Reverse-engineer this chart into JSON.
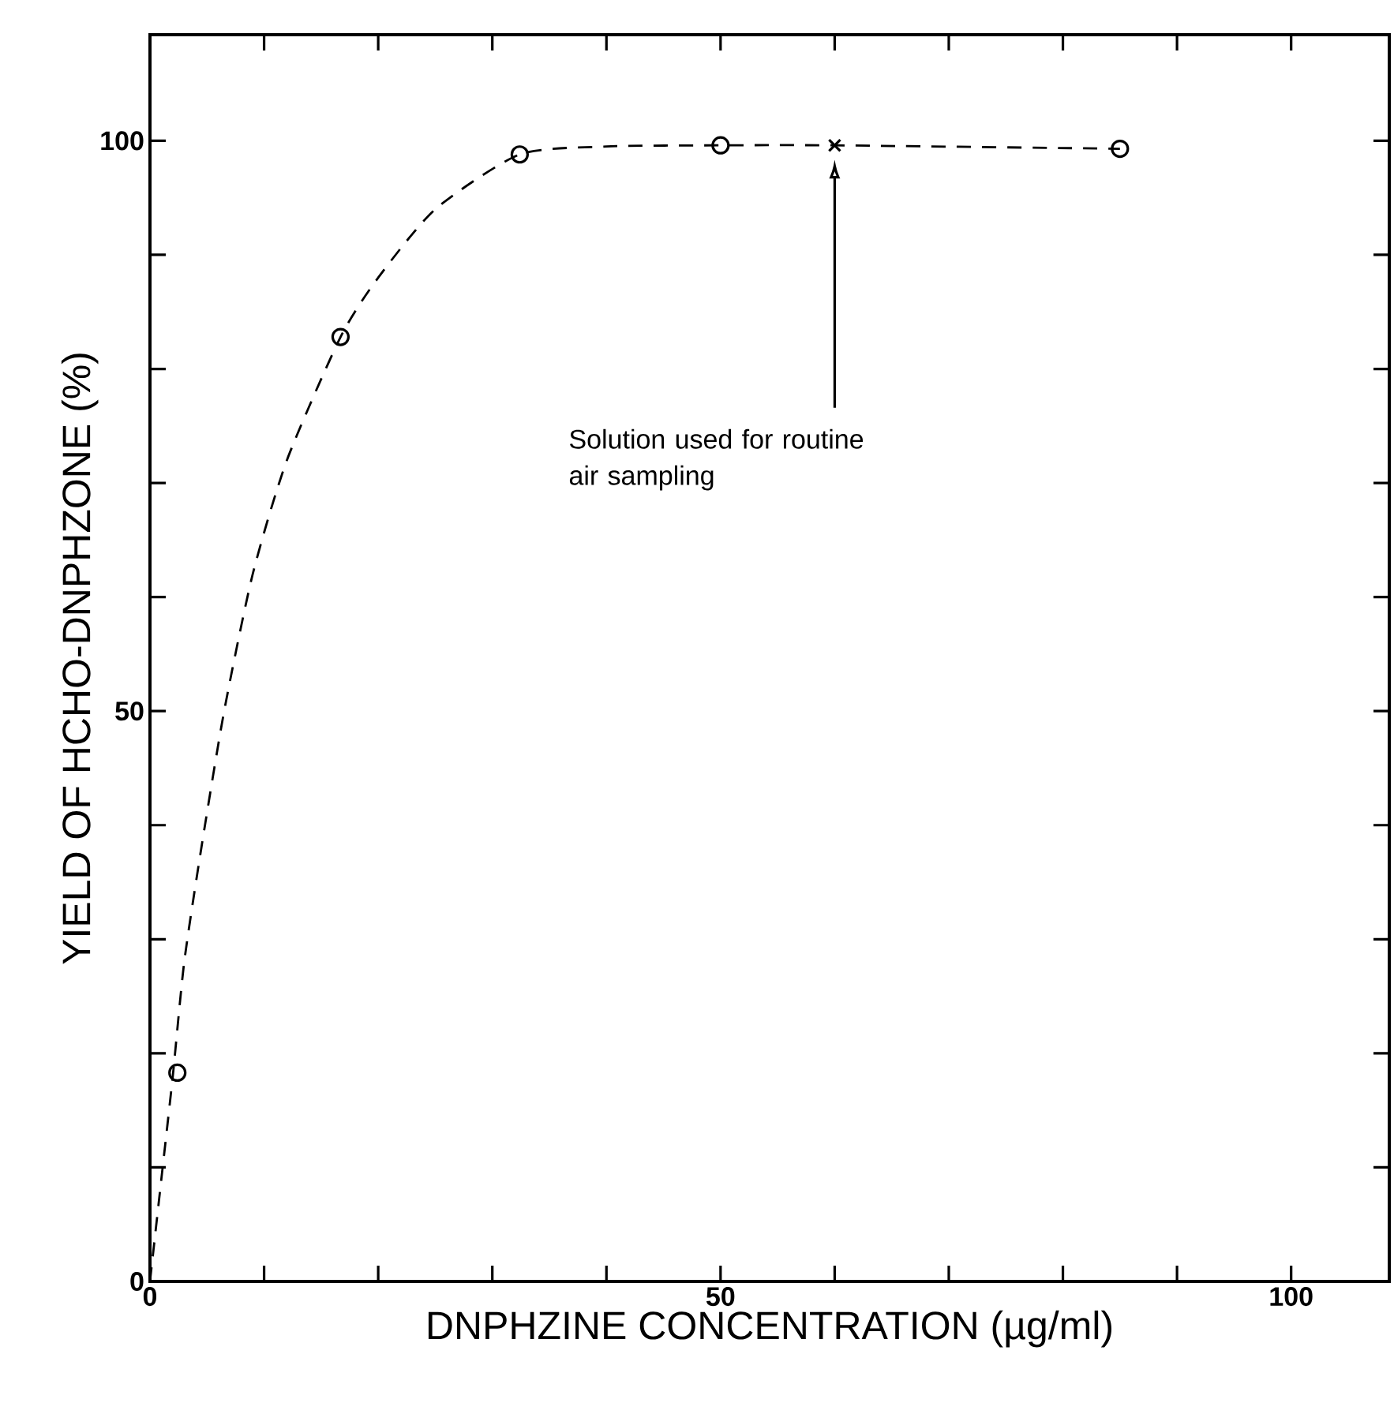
{
  "chart_data": {
    "type": "scatter",
    "xlabel": "DNPHZINE   CONCENTRATION  (µg/ml)",
    "ylabel": "YIELD  OF  HCHO-DNPHZONE (%)",
    "xlim": [
      0,
      108.6
    ],
    "ylim": [
      0,
      109.3
    ],
    "xticks": [
      0,
      {
        "value": 10,
        "label": null
      },
      {
        "value": 20,
        "label": null
      },
      {
        "value": 30,
        "label": null
      },
      {
        "value": 40,
        "label": null
      },
      50,
      {
        "value": 60,
        "label": null
      },
      {
        "value": 70,
        "label": null
      },
      {
        "value": 80,
        "label": null
      },
      {
        "value": 90,
        "label": null
      },
      100
    ],
    "yticks": [
      0,
      {
        "value": 10,
        "label": null
      },
      {
        "value": 20,
        "label": null
      },
      {
        "value": 30,
        "label": null
      },
      {
        "value": 40,
        "label": null
      },
      50,
      {
        "value": 60,
        "label": null
      },
      {
        "value": 70,
        "label": null
      },
      {
        "value": 80,
        "label": null
      },
      {
        "value": 90,
        "label": null
      },
      100
    ],
    "series": [
      {
        "type": "line",
        "color": "#000000",
        "line_style": "dashed",
        "marker": "none",
        "x": [
          0,
          1,
          2,
          3,
          4.5,
          6.5,
          9,
          12,
          16.7,
          20,
          25,
          32.4,
          40,
          50,
          60,
          85
        ],
        "values": [
          0,
          9,
          18,
          28,
          38,
          50,
          62,
          72,
          82.8,
          88,
          94,
          98.8,
          99.5,
          99.6,
          99.6,
          99.3
        ]
      },
      {
        "color": "#000000",
        "marker": "circle",
        "x": [
          2.4,
          16.7,
          32.4,
          50,
          85
        ],
        "values": [
          18.3,
          82.8,
          98.8,
          99.6,
          99.3
        ]
      },
      {
        "type": "scatter",
        "color": "#000000",
        "marker": "cross",
        "x": [
          60
        ],
        "values": [
          99.6
        ]
      }
    ],
    "annotations": [
      "Solution used for routine air sampling"
    ]
  }
}
